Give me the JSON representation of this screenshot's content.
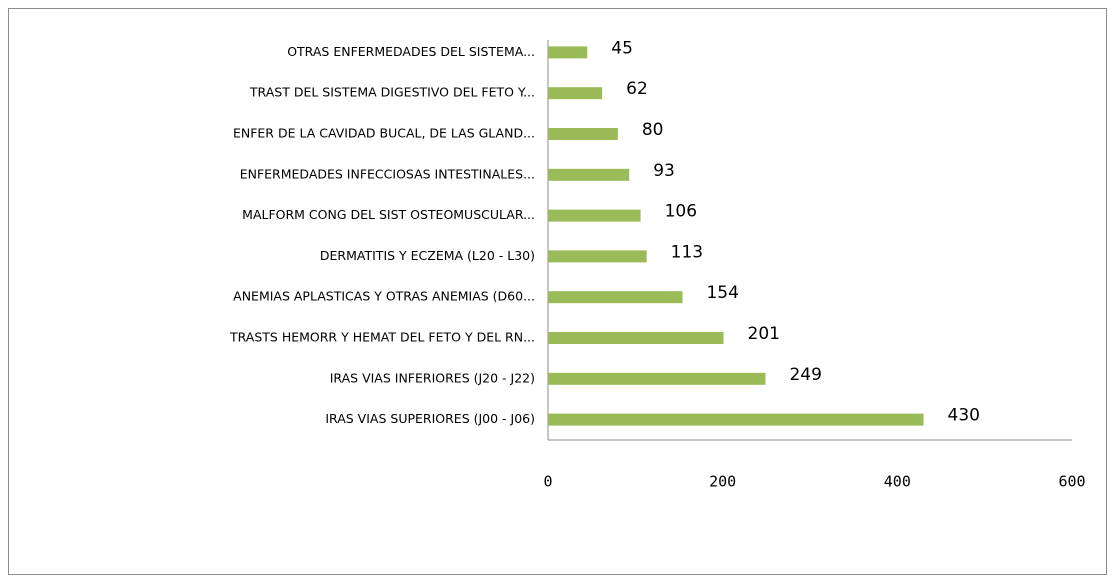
{
  "chart_data": {
    "type": "bar",
    "orientation": "horizontal",
    "categories": [
      "OTRAS ENFERMEDADES DEL SISTEMA...",
      "TRAST DEL SISTEMA DIGESTIVO DEL FETO Y...",
      "ENFER DE LA CAVIDAD BUCAL, DE LAS GLAND...",
      "ENFERMEDADES INFECCIOSAS INTESTINALES...",
      "MALFORM  CONG DEL SIST OSTEOMUSCULAR...",
      "DERMATITIS Y ECZEMA (L20 - L30)",
      "ANEMIAS APLASTICAS Y OTRAS ANEMIAS (D60...",
      "TRASTS HEMORR Y HEMAT DEL FETO Y DEL RN...",
      "IRAS VIAS INFERIORES (J20 - J22)",
      "IRAS VIAS SUPERIORES (J00 - J06)"
    ],
    "values": [
      45,
      62,
      80,
      93,
      106,
      113,
      154,
      201,
      249,
      430
    ],
    "color": "#9bbb59",
    "xlim": [
      0,
      600
    ],
    "xticks": [
      0,
      200,
      400,
      600
    ]
  }
}
